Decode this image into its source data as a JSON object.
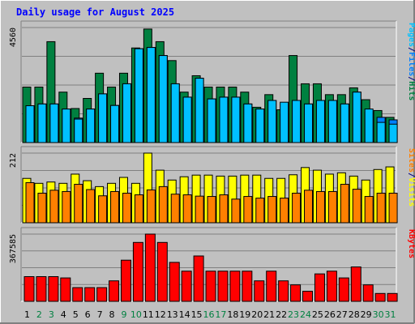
{
  "chart_data": {
    "type": "bar",
    "title": "Daily usage for August 2025",
    "categories": [
      "1",
      "2",
      "3",
      "4",
      "5",
      "6",
      "7",
      "8",
      "9",
      "10",
      "11",
      "12",
      "13",
      "14",
      "15",
      "16",
      "17",
      "18",
      "19",
      "20",
      "21",
      "22",
      "23",
      "24",
      "25",
      "26",
      "27",
      "28",
      "29",
      "30",
      "31"
    ],
    "weekend_days": [
      "2",
      "3",
      "9",
      "10",
      "16",
      "17",
      "23",
      "24",
      "30",
      "31"
    ],
    "panels": [
      {
        "name": "hits-pages-files",
        "ymax_label": "4560",
        "ymax": 4560,
        "right_labels": [
          {
            "text": "Hits",
            "color": "#008040"
          },
          {
            "text": "/",
            "color": "#000080"
          },
          {
            "text": "Files",
            "color": "#0080ff"
          },
          {
            "text": "/",
            "color": "#000080"
          },
          {
            "text": "Pages",
            "color": "#00c0ff"
          }
        ],
        "series": [
          {
            "name": "Hits",
            "color": "#008040",
            "values": [
              2200,
              2200,
              4000,
              2000,
              1350,
              1750,
              2750,
              2200,
              2750,
              3750,
              4500,
              4000,
              3250,
              2000,
              2650,
              2200,
              2200,
              2200,
              2000,
              1400,
              1900,
              1300,
              3450,
              2330,
              2330,
              1900,
              1900,
              2170,
              1700,
              1270,
              1000
            ]
          },
          {
            "name": "Files",
            "color": "#0080ff",
            "values": [
              1460,
              1530,
              1530,
              1330,
              970,
              1330,
              1930,
              1470,
              2330,
              3720,
              3770,
              3450,
              2330,
              1800,
              2550,
              1730,
              1800,
              1800,
              1530,
              1330,
              1670,
              1130,
              1670,
              1530,
              1670,
              1670,
              1530,
              2000,
              1200,
              1000,
              900
            ]
          },
          {
            "name": "Pages",
            "color": "#00c0ff",
            "values": [
              1460,
              1530,
              1530,
              1330,
              930,
              1330,
              1930,
              1470,
              2330,
              3720,
              3770,
              3450,
              2330,
              1800,
              2550,
              1730,
              1800,
              1800,
              1530,
              1330,
              1670,
              1600,
              1670,
              1530,
              1670,
              1670,
              1530,
              2000,
              1330,
              800,
              730
            ]
          }
        ]
      },
      {
        "name": "visits-sites",
        "ymax_label": "212",
        "ymax": 212,
        "right_labels": [
          {
            "text": "Visits",
            "color": "#ffff00"
          },
          {
            "text": "/",
            "color": "#000080"
          },
          {
            "text": "Sites",
            "color": "#ff8000"
          }
        ],
        "series": [
          {
            "name": "Visits",
            "color": "#ffff00",
            "values": [
              135,
              120,
              124,
              120,
              148,
              128,
              110,
              120,
              138,
              120,
              212,
              160,
              130,
              140,
              145,
              145,
              142,
              142,
              145,
              145,
              135,
              135,
              146,
              168,
              160,
              148,
              152,
              142,
              130,
              162,
              170
            ]
          },
          {
            "name": "Sites",
            "color": "#ff8000",
            "values": [
              122,
              90,
              99,
              95,
              117,
              101,
              82,
              95,
              90,
              85,
              100,
              110,
              87,
              85,
              81,
              80,
              85,
              72,
              80,
              75,
              80,
              75,
              90,
              99,
              95,
              95,
              117,
              102,
              80,
              90,
              90
            ]
          }
        ]
      },
      {
        "name": "kbytes",
        "ymax_label": "367585",
        "ymax": 367585,
        "right_labels": [
          {
            "text": "KBytes",
            "color": "#ff0000"
          }
        ],
        "series": [
          {
            "name": "KBytes",
            "color": "#ff0000",
            "values": [
              135000,
              135000,
              135000,
              128000,
              75000,
              75000,
              75000,
              112000,
              225000,
              322000,
              367585,
              322000,
              213000,
              165000,
              248000,
              165000,
              165000,
              165000,
              165000,
              112000,
              165000,
              112000,
              90000,
              55000,
              150000,
              165000,
              128000,
              188000,
              90000,
              43000,
              43000
            ]
          }
        ]
      }
    ]
  }
}
